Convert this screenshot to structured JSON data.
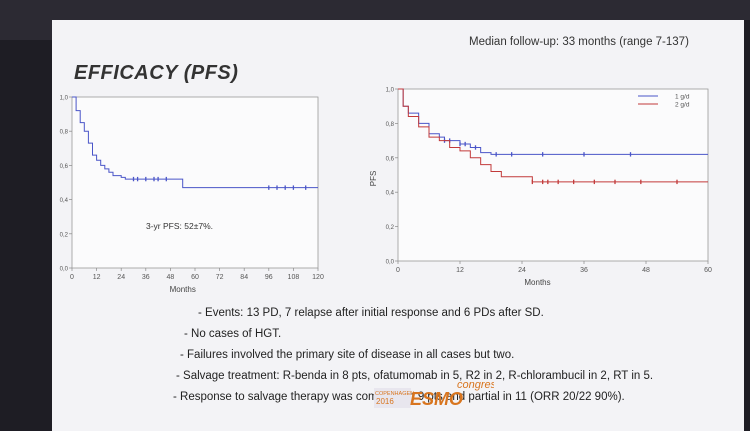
{
  "slide": {
    "title": "EFFICACY (PFS)",
    "followup": "Median follow-up: 33 months (range 7-137)"
  },
  "bullets": [
    "- Events: 13 PD, 7 relapse after initial response and 6 PDs after SD.",
    "- No cases of HGT.",
    "- Failures involved the primary site of disease in all cases but two.",
    "- Salvage treatment: R-benda in 8 pts, ofatumomab in 5, R2 in 2, R-chlorambucil in 2, RT in 5.",
    "- Response to salvage therapy was complete in 9 pts and partial in 11 (ORR 20/22 90%)."
  ],
  "logo": {
    "city": "COPENHAGEN",
    "year": "2016",
    "brand": "ESMO",
    "suffix": "congress"
  },
  "chart_data": [
    {
      "type": "line",
      "title": "",
      "xlabel": "Months",
      "ylabel": "PFS",
      "xlim": [
        0,
        120
      ],
      "ylim": [
        0,
        1
      ],
      "xticks": [
        "0",
        "12",
        "24",
        "36",
        "48",
        "60",
        "72",
        "84",
        "96",
        "108",
        "120"
      ],
      "yticks": [
        "0,0",
        "0,2",
        "0,4",
        "0,6",
        "0,8",
        "1,0"
      ],
      "annotation": "3-yr PFS: 52±7%.",
      "series": [
        {
          "color": "#4a55c8",
          "x": [
            0,
            2,
            4,
            6,
            8,
            10,
            12,
            14,
            16,
            18,
            20,
            24,
            26,
            30,
            36,
            40,
            54,
            120
          ],
          "y": [
            1.0,
            0.92,
            0.85,
            0.8,
            0.73,
            0.66,
            0.63,
            0.6,
            0.58,
            0.56,
            0.54,
            0.53,
            0.52,
            0.52,
            0.52,
            0.52,
            0.47,
            0.47
          ],
          "censored_x": [
            30,
            32,
            36,
            40,
            42,
            46,
            96,
            100,
            104,
            108,
            114
          ]
        }
      ]
    },
    {
      "type": "line",
      "title": "",
      "xlabel": "Months",
      "ylabel": "PFS",
      "xlim": [
        0,
        60
      ],
      "ylim": [
        0,
        1
      ],
      "xticks": [
        "0",
        "12",
        "24",
        "36",
        "48",
        "60"
      ],
      "yticks": [
        "0,0",
        "0,2",
        "0,4",
        "0,6",
        "0,8",
        "1,0"
      ],
      "legend": "top-right",
      "series": [
        {
          "name": "1 g/d",
          "color": "#4a55c8",
          "x": [
            0,
            1,
            2,
            4,
            6,
            8,
            9,
            12,
            14,
            16,
            18,
            60
          ],
          "y": [
            1.0,
            0.9,
            0.86,
            0.8,
            0.74,
            0.72,
            0.7,
            0.68,
            0.66,
            0.63,
            0.62,
            0.62
          ],
          "censored_x": [
            9,
            10,
            12,
            13,
            15,
            19,
            22,
            28,
            36,
            45
          ]
        },
        {
          "name": "2 g/d",
          "color": "#c23a3a",
          "x": [
            0,
            1,
            2,
            4,
            6,
            8,
            10,
            12,
            14,
            16,
            18,
            20,
            26,
            60
          ],
          "y": [
            1.0,
            0.9,
            0.84,
            0.78,
            0.72,
            0.7,
            0.66,
            0.64,
            0.6,
            0.56,
            0.52,
            0.49,
            0.46,
            0.46
          ],
          "censored_x": [
            26,
            28,
            29,
            31,
            34,
            38,
            42,
            47,
            54
          ]
        }
      ]
    }
  ]
}
